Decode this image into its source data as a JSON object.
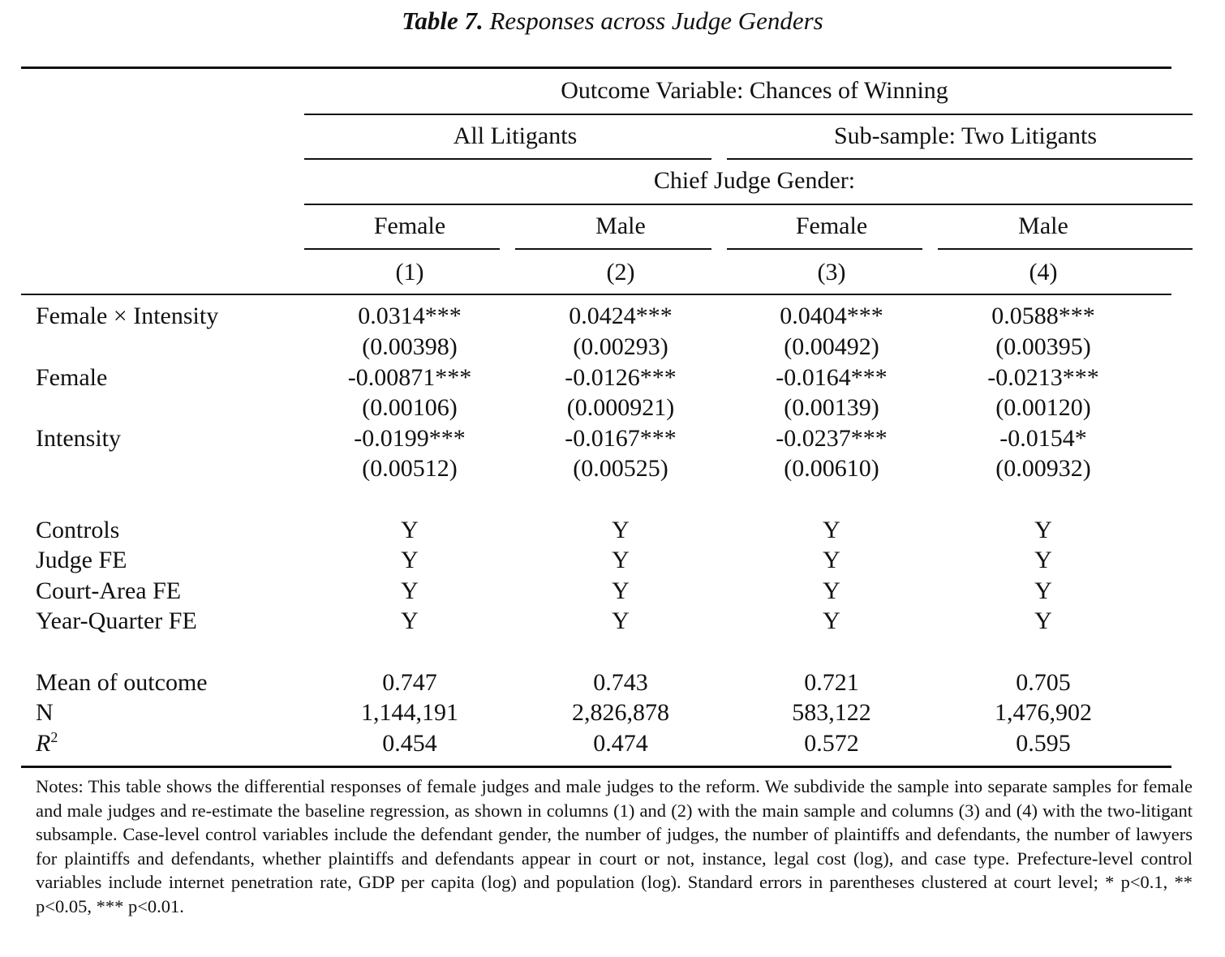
{
  "title": {
    "label": "Table 7.",
    "text": "Responses across Judge Genders"
  },
  "header": {
    "outcome": "Outcome Variable: Chances of Winning",
    "groups": [
      "All Litigants",
      "Sub-sample: Two Litigants"
    ],
    "subheader": "Chief Judge Gender:",
    "genders": [
      "Female",
      "Male",
      "Female",
      "Male"
    ],
    "colnums": [
      "(1)",
      "(2)",
      "(3)",
      "(4)"
    ]
  },
  "rows": [
    {
      "label": "Female × Intensity",
      "values": [
        "0.0314***",
        "0.0424***",
        "0.0404***",
        "0.0588***"
      ]
    },
    {
      "label": "",
      "values": [
        "(0.00398)",
        "(0.00293)",
        "(0.00492)",
        "(0.00395)"
      ]
    },
    {
      "label": "Female",
      "values": [
        "-0.00871***",
        "-0.0126***",
        "-0.0164***",
        "-0.0213***"
      ]
    },
    {
      "label": "",
      "values": [
        "(0.00106)",
        "(0.000921)",
        "(0.00139)",
        "(0.00120)"
      ]
    },
    {
      "label": "Intensity",
      "values": [
        "-0.0199***",
        "-0.0167***",
        "-0.0237***",
        "-0.0154*"
      ]
    },
    {
      "label": "",
      "values": [
        "(0.00512)",
        "(0.00525)",
        "(0.00610)",
        "(0.00932)"
      ]
    }
  ],
  "controls": [
    {
      "label": "Controls",
      "values": [
        "Y",
        "Y",
        "Y",
        "Y"
      ]
    },
    {
      "label": "Judge FE",
      "values": [
        "Y",
        "Y",
        "Y",
        "Y"
      ]
    },
    {
      "label": "Court-Area FE",
      "values": [
        "Y",
        "Y",
        "Y",
        "Y"
      ]
    },
    {
      "label": "Year-Quarter FE",
      "values": [
        "Y",
        "Y",
        "Y",
        "Y"
      ]
    }
  ],
  "stats": [
    {
      "label": "Mean of outcome",
      "values": [
        "0.747",
        "0.743",
        "0.721",
        "0.705"
      ]
    },
    {
      "label": "N",
      "values": [
        "1,144,191",
        "2,826,878",
        "583,122",
        "1,476,902"
      ]
    },
    {
      "label": "R",
      "sup": "2",
      "values": [
        "0.454",
        "0.474",
        "0.572",
        "0.595"
      ]
    }
  ],
  "notes": "Notes: This table shows the differential responses of female judges and male judges to the reform. We subdivide the sample into separate samples for female and male judges and re-estimate the baseline regression, as shown in columns (1) and (2) with the main sample and columns (3) and (4) with the two-litigant subsample. Case-level control variables include the defendant gender, the number of judges, the number of plaintiffs and defendants, the number of lawyers for plaintiffs and defendants, whether plaintiffs and defendants appear in court or not, instance, legal cost (log), and case type. Prefecture-level control variables include internet penetration rate, GDP per capita (log) and population (log). Standard errors in parentheses clustered at court level; * p<0.1, ** p<0.05, *** p<0.01."
}
